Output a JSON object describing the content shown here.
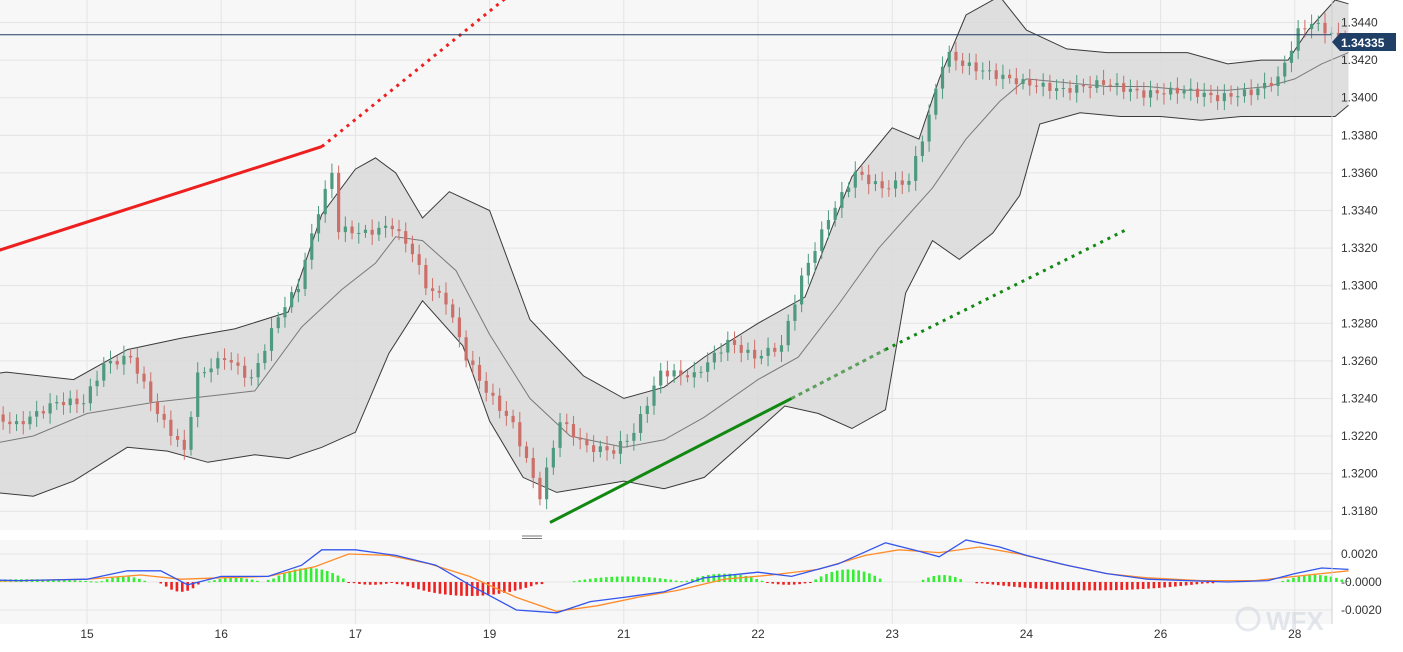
{
  "colors": {
    "panel_bg": "#f7f7f7",
    "grid": "#e4e4e4",
    "band_fill": "#d9d9d9",
    "band_line": "#3a3a3a",
    "bull": "#4e9a7f",
    "bear": "#cc6f69",
    "resistance": "#ee1f1f",
    "support_solid": "#118811",
    "support_faded": "#5d9f5d",
    "support_dotted": "#118811",
    "price_line": "#1f3f66",
    "badge": "#1f3f66",
    "macd": "#3355ee",
    "signal": "#ff8c2a",
    "hist_pos": "#33ee33",
    "hist_neg": "#ee2222"
  },
  "watermark": "WFX",
  "current_price_label": "1.34335",
  "chart_data": [
    {
      "type": "candlestick",
      "title": "",
      "ylim": [
        1.317,
        1.3452
      ],
      "y_ticks": [
        "1.3180",
        "1.3200",
        "1.3220",
        "1.3240",
        "1.3260",
        "1.3280",
        "1.3300",
        "1.3320",
        "1.3340",
        "1.3360",
        "1.3380",
        "1.3400",
        "1.3420",
        "1.3440"
      ],
      "y_tick_values": [
        1.318,
        1.32,
        1.322,
        1.324,
        1.326,
        1.328,
        1.33,
        1.332,
        1.334,
        1.336,
        1.338,
        1.34,
        1.342,
        1.344
      ],
      "x_ticks": [
        "15",
        "16",
        "17",
        "19",
        "21",
        "22",
        "23",
        "24",
        "26",
        "28"
      ],
      "x_tick_pos": [
        1,
        2,
        3,
        4,
        5,
        6,
        7,
        8,
        9,
        10
      ],
      "current_price": 1.34335,
      "price_path": [
        [
          0,
          1.3222
        ],
        [
          0.1,
          1.3248
        ],
        [
          0.25,
          1.3232
        ],
        [
          0.5,
          1.3226
        ],
        [
          0.8,
          1.3238
        ],
        [
          1.0,
          1.3238
        ],
        [
          1.15,
          1.3258
        ],
        [
          1.35,
          1.3262
        ],
        [
          1.55,
          1.3232
        ],
        [
          1.75,
          1.3212
        ],
        [
          1.85,
          1.3252
        ],
        [
          2.05,
          1.3262
        ],
        [
          2.25,
          1.325
        ],
        [
          2.45,
          1.3284
        ],
        [
          2.6,
          1.33
        ],
        [
          2.75,
          1.334
        ],
        [
          2.85,
          1.336
        ],
        [
          2.9,
          1.333
        ],
        [
          3.1,
          1.3328
        ],
        [
          3.3,
          1.3332
        ],
        [
          3.45,
          1.3318
        ],
        [
          3.55,
          1.33
        ],
        [
          3.7,
          1.3292
        ],
        [
          3.85,
          1.3262
        ],
        [
          4.0,
          1.3244
        ],
        [
          4.2,
          1.3226
        ],
        [
          4.4,
          1.3188
        ],
        [
          4.55,
          1.3228
        ],
        [
          4.75,
          1.3214
        ],
        [
          4.95,
          1.3212
        ],
        [
          5.1,
          1.3222
        ],
        [
          5.3,
          1.3254
        ],
        [
          5.55,
          1.3252
        ],
        [
          5.8,
          1.327
        ],
        [
          6.0,
          1.3262
        ],
        [
          6.2,
          1.3268
        ],
        [
          6.35,
          1.3304
        ],
        [
          6.55,
          1.3336
        ],
        [
          6.75,
          1.336
        ],
        [
          6.95,
          1.3352
        ],
        [
          7.15,
          1.3356
        ],
        [
          7.3,
          1.339
        ],
        [
          7.42,
          1.3424
        ],
        [
          7.55,
          1.3418
        ],
        [
          7.8,
          1.3412
        ],
        [
          8.0,
          1.3408
        ],
        [
          8.3,
          1.3404
        ],
        [
          8.6,
          1.3408
        ],
        [
          8.9,
          1.3402
        ],
        [
          9.2,
          1.3404
        ],
        [
          9.45,
          1.34
        ],
        [
          9.7,
          1.3403
        ],
        [
          9.9,
          1.341
        ],
        [
          10.05,
          1.3435
        ],
        [
          10.15,
          1.344
        ],
        [
          10.4,
          1.343
        ]
      ],
      "band_upper": [
        [
          0,
          1.325
        ],
        [
          0.4,
          1.3254
        ],
        [
          0.9,
          1.325
        ],
        [
          1.3,
          1.3266
        ],
        [
          1.7,
          1.3272
        ],
        [
          2.1,
          1.3277
        ],
        [
          2.5,
          1.3286
        ],
        [
          2.75,
          1.3338
        ],
        [
          3.0,
          1.3362
        ],
        [
          3.15,
          1.3368
        ],
        [
          3.3,
          1.336
        ],
        [
          3.5,
          1.3336
        ],
        [
          3.7,
          1.335
        ],
        [
          4.0,
          1.334
        ],
        [
          4.3,
          1.3282
        ],
        [
          4.7,
          1.3252
        ],
        [
          5.0,
          1.324
        ],
        [
          5.3,
          1.3246
        ],
        [
          5.6,
          1.3262
        ],
        [
          6.0,
          1.328
        ],
        [
          6.35,
          1.3294
        ],
        [
          6.7,
          1.3358
        ],
        [
          7.0,
          1.3384
        ],
        [
          7.2,
          1.3378
        ],
        [
          7.35,
          1.341
        ],
        [
          7.55,
          1.3444
        ],
        [
          7.8,
          1.3454
        ],
        [
          8.0,
          1.3436
        ],
        [
          8.3,
          1.3426
        ],
        [
          8.6,
          1.3424
        ],
        [
          8.9,
          1.3424
        ],
        [
          9.2,
          1.3424
        ],
        [
          9.5,
          1.3418
        ],
        [
          9.75,
          1.342
        ],
        [
          9.95,
          1.342
        ],
        [
          10.1,
          1.3436
        ],
        [
          10.3,
          1.3452
        ],
        [
          10.4,
          1.345
        ]
      ],
      "band_lower": [
        [
          0,
          1.3198
        ],
        [
          0.3,
          1.319
        ],
        [
          0.6,
          1.3188
        ],
        [
          0.9,
          1.3196
        ],
        [
          1.3,
          1.3214
        ],
        [
          1.6,
          1.3212
        ],
        [
          1.9,
          1.3206
        ],
        [
          2.25,
          1.321
        ],
        [
          2.5,
          1.3208
        ],
        [
          2.75,
          1.3214
        ],
        [
          3.0,
          1.3222
        ],
        [
          3.25,
          1.3264
        ],
        [
          3.5,
          1.3292
        ],
        [
          3.8,
          1.3268
        ],
        [
          4.0,
          1.3228
        ],
        [
          4.25,
          1.3198
        ],
        [
          4.5,
          1.319
        ],
        [
          4.75,
          1.3193
        ],
        [
          5.0,
          1.3196
        ],
        [
          5.3,
          1.3192
        ],
        [
          5.6,
          1.3198
        ],
        [
          5.95,
          1.322
        ],
        [
          6.2,
          1.3236
        ],
        [
          6.45,
          1.3232
        ],
        [
          6.7,
          1.3224
        ],
        [
          6.95,
          1.3234
        ],
        [
          7.1,
          1.3296
        ],
        [
          7.3,
          1.3324
        ],
        [
          7.5,
          1.3314
        ],
        [
          7.75,
          1.3328
        ],
        [
          7.95,
          1.3348
        ],
        [
          8.1,
          1.3386
        ],
        [
          8.4,
          1.3392
        ],
        [
          8.7,
          1.339
        ],
        [
          9.0,
          1.339
        ],
        [
          9.3,
          1.3388
        ],
        [
          9.6,
          1.339
        ],
        [
          9.8,
          1.339
        ],
        [
          10.0,
          1.339
        ],
        [
          10.3,
          1.339
        ],
        [
          10.4,
          1.3396
        ]
      ],
      "band_middle": [
        [
          0,
          1.3212
        ],
        [
          0.6,
          1.322
        ],
        [
          1.0,
          1.3232
        ],
        [
          1.5,
          1.3238
        ],
        [
          2.0,
          1.3242
        ],
        [
          2.25,
          1.3244
        ],
        [
          2.6,
          1.3278
        ],
        [
          2.9,
          1.3298
        ],
        [
          3.15,
          1.3312
        ],
        [
          3.3,
          1.3326
        ],
        [
          3.5,
          1.3324
        ],
        [
          3.75,
          1.3308
        ],
        [
          4.0,
          1.3274
        ],
        [
          4.3,
          1.324
        ],
        [
          4.6,
          1.322
        ],
        [
          5.0,
          1.3214
        ],
        [
          5.3,
          1.3218
        ],
        [
          5.6,
          1.323
        ],
        [
          6.0,
          1.325
        ],
        [
          6.3,
          1.3262
        ],
        [
          6.6,
          1.329
        ],
        [
          6.9,
          1.332
        ],
        [
          7.1,
          1.3336
        ],
        [
          7.3,
          1.3352
        ],
        [
          7.55,
          1.3378
        ],
        [
          7.8,
          1.3398
        ],
        [
          8.0,
          1.341
        ],
        [
          8.3,
          1.3408
        ],
        [
          8.6,
          1.3406
        ],
        [
          8.9,
          1.3406
        ],
        [
          9.2,
          1.3404
        ],
        [
          9.5,
          1.3404
        ],
        [
          9.8,
          1.3406
        ],
        [
          10.0,
          1.341
        ],
        [
          10.2,
          1.3418
        ],
        [
          10.4,
          1.3424
        ]
      ],
      "trendlines": [
        {
          "name": "resistance",
          "style": "solid",
          "color": "resistance",
          "points": [
            [
              -0.65,
              1.3296
            ],
            [
              2.75,
              1.3374
            ]
          ]
        },
        {
          "name": "resistance",
          "style": "dotted",
          "color": "resistance",
          "points": [
            [
              2.75,
              1.3374
            ],
            [
              4.45,
              1.3472
            ]
          ]
        },
        {
          "name": "support",
          "style": "solid",
          "color": "support_solid",
          "points": [
            [
              4.45,
              1.3174
            ],
            [
              6.25,
              1.324
            ]
          ]
        },
        {
          "name": "support",
          "style": "dashed-faded",
          "color": "support_faded",
          "points": [
            [
              6.25,
              1.324
            ],
            [
              6.95,
              1.3266
            ]
          ]
        },
        {
          "name": "support",
          "style": "dotted",
          "color": "support_dotted",
          "points": [
            [
              6.95,
              1.3266
            ],
            [
              8.75,
              1.333
            ]
          ]
        }
      ]
    },
    {
      "type": "macd",
      "ylim": [
        -0.003,
        0.003
      ],
      "y_ticks": [
        "0.0020",
        "-0.0000",
        "-0.0020"
      ],
      "y_tick_values": [
        0.002,
        0.0,
        -0.002
      ],
      "macd_line": [
        [
          -0.65,
          -0.0008
        ],
        [
          -0.3,
          0.0
        ],
        [
          0.0,
          0.0002
        ],
        [
          0.5,
          0.0001
        ],
        [
          1.0,
          0.0002
        ],
        [
          1.3,
          0.0008
        ],
        [
          1.55,
          0.0008
        ],
        [
          1.75,
          -0.0002
        ],
        [
          2.0,
          0.0004
        ],
        [
          2.35,
          0.0004
        ],
        [
          2.6,
          0.0012
        ],
        [
          2.75,
          0.0023
        ],
        [
          3.0,
          0.0023
        ],
        [
          3.3,
          0.0019
        ],
        [
          3.6,
          0.0012
        ],
        [
          3.85,
          -0.0002
        ],
        [
          4.2,
          -0.002
        ],
        [
          4.5,
          -0.0022
        ],
        [
          4.75,
          -0.0014
        ],
        [
          5.0,
          -0.0011
        ],
        [
          5.3,
          -0.0007
        ],
        [
          5.6,
          0.0003
        ],
        [
          6.0,
          0.0007
        ],
        [
          6.25,
          0.0004
        ],
        [
          6.6,
          0.0013
        ],
        [
          6.95,
          0.0028
        ],
        [
          7.2,
          0.0022
        ],
        [
          7.35,
          0.0018
        ],
        [
          7.55,
          0.003
        ],
        [
          7.8,
          0.0025
        ],
        [
          8.0,
          0.0019
        ],
        [
          8.3,
          0.0012
        ],
        [
          8.6,
          0.0006
        ],
        [
          8.9,
          0.0002
        ],
        [
          9.2,
          0.0001
        ],
        [
          9.5,
          0.0
        ],
        [
          9.8,
          0.0001
        ],
        [
          10.0,
          0.0006
        ],
        [
          10.2,
          0.001
        ],
        [
          10.4,
          0.0009
        ]
      ],
      "signal_line": [
        [
          -0.65,
          -0.0012
        ],
        [
          -0.3,
          -0.0004
        ],
        [
          0.0,
          0.0
        ],
        [
          0.5,
          0.0001
        ],
        [
          1.0,
          0.0002
        ],
        [
          1.4,
          0.0005
        ],
        [
          1.7,
          0.0002
        ],
        [
          2.0,
          0.0003
        ],
        [
          2.35,
          0.0004
        ],
        [
          2.7,
          0.0011
        ],
        [
          2.95,
          0.002
        ],
        [
          3.25,
          0.0019
        ],
        [
          3.55,
          0.0013
        ],
        [
          3.85,
          0.0004
        ],
        [
          4.2,
          -0.0011
        ],
        [
          4.5,
          -0.0021
        ],
        [
          4.8,
          -0.0017
        ],
        [
          5.1,
          -0.0011
        ],
        [
          5.4,
          -0.0006
        ],
        [
          5.75,
          0.0002
        ],
        [
          6.1,
          0.0005
        ],
        [
          6.45,
          0.0009
        ],
        [
          6.8,
          0.0019
        ],
        [
          7.05,
          0.0023
        ],
        [
          7.35,
          0.0021
        ],
        [
          7.65,
          0.0025
        ],
        [
          7.95,
          0.002
        ],
        [
          8.25,
          0.0013
        ],
        [
          8.6,
          0.0006
        ],
        [
          8.9,
          0.0003
        ],
        [
          9.3,
          0.0001
        ],
        [
          9.7,
          0.0001
        ],
        [
          10.1,
          0.0005
        ],
        [
          10.4,
          0.0008
        ]
      ],
      "histogram": [
        {
          "range": [
            -0.65,
            -0.05
          ],
          "peak": 0.0006,
          "sign": "pos"
        },
        {
          "range": [
            0.0,
            1.1
          ],
          "peak": 0.0002,
          "sign": "pos"
        },
        {
          "range": [
            1.1,
            1.45
          ],
          "peak": 0.0004,
          "sign": "pos"
        },
        {
          "range": [
            1.55,
            1.85
          ],
          "peak": -0.0007,
          "sign": "neg"
        },
        {
          "range": [
            1.9,
            2.3
          ],
          "peak": 0.0003,
          "sign": "pos"
        },
        {
          "range": [
            2.35,
            2.95
          ],
          "peak": 0.001,
          "sign": "pos"
        },
        {
          "range": [
            2.95,
            3.3
          ],
          "peak": -0.0002,
          "sign": "neg"
        },
        {
          "range": [
            3.3,
            4.4
          ],
          "peak": -0.001,
          "sign": "neg"
        },
        {
          "range": [
            4.6,
            5.45
          ],
          "peak": 0.0004,
          "sign": "pos"
        },
        {
          "range": [
            5.45,
            6.05
          ],
          "peak": 0.0006,
          "sign": "pos"
        },
        {
          "range": [
            6.05,
            6.4
          ],
          "peak": -0.0002,
          "sign": "neg"
        },
        {
          "range": [
            6.4,
            6.95
          ],
          "peak": 0.0009,
          "sign": "pos"
        },
        {
          "range": [
            7.2,
            7.55
          ],
          "peak": 0.0005,
          "sign": "pos"
        },
        {
          "range": [
            7.6,
            9.4
          ],
          "peak": -0.0006,
          "sign": "neg"
        },
        {
          "range": [
            9.9,
            10.4
          ],
          "peak": 0.0005,
          "sign": "pos"
        }
      ]
    }
  ]
}
